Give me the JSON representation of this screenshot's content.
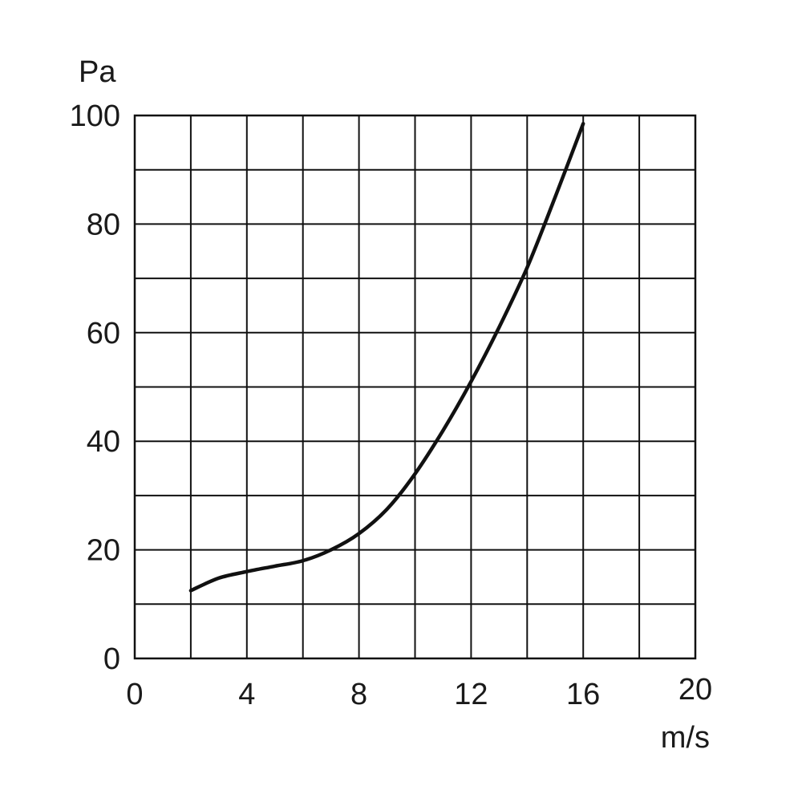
{
  "chart_data": {
    "type": "line",
    "xlabel": "m/s",
    "ylabel": "Pa",
    "xlim": [
      0,
      20
    ],
    "ylim": [
      0,
      100
    ],
    "x_ticks": [
      0,
      4,
      8,
      12,
      16,
      20
    ],
    "x_tick_labels": [
      "0",
      "4",
      "8",
      "12",
      "16",
      "20"
    ],
    "y_ticks": [
      0,
      20,
      40,
      60,
      80,
      100
    ],
    "y_tick_labels": [
      "0",
      "20",
      "40",
      "60",
      "80",
      "100"
    ],
    "grid": true,
    "x_grid_step": 2,
    "y_grid_step": 10,
    "series": [
      {
        "color": "#111111",
        "x": [
          2,
          3,
          4,
          5,
          6,
          7,
          8,
          9,
          10,
          11,
          12,
          13,
          14,
          15,
          16
        ],
        "y": [
          12.5,
          14.8,
          16.0,
          17.0,
          18.0,
          20.0,
          23.0,
          27.5,
          34.0,
          42.0,
          51.0,
          61.0,
          72.0,
          85.0,
          98.5
        ]
      }
    ]
  }
}
